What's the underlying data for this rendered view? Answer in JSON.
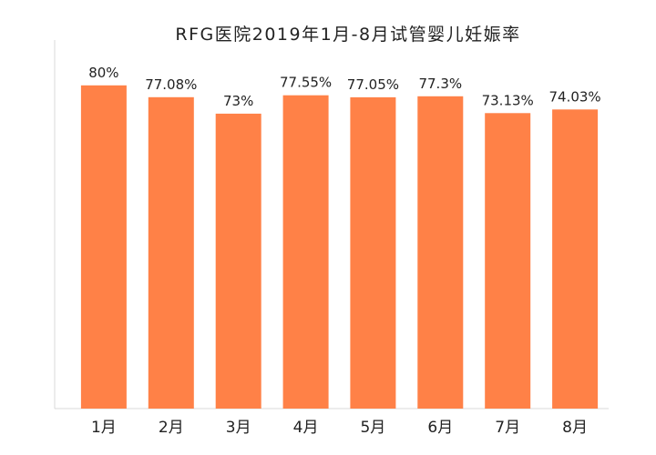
{
  "chart_data": {
    "type": "bar",
    "title": "RFG医院2019年1月-8月试管婴儿妊娠率",
    "xlabel": "",
    "ylabel": "",
    "categories": [
      "1月",
      "2月",
      "3月",
      "4月",
      "5月",
      "6月",
      "7月",
      "8月"
    ],
    "values": [
      80,
      77.08,
      73,
      77.55,
      77.05,
      77.3,
      73.13,
      74.03
    ],
    "data_labels": [
      "80%",
      "77.08%",
      "73%",
      "77.55%",
      "77.05%",
      "77.3%",
      "73.13%",
      "74.03%"
    ],
    "ylim": [
      0,
      90
    ],
    "grid": false,
    "legend": "none",
    "bar_color": "#FF8147",
    "axis_color": "#d9d9d9"
  }
}
